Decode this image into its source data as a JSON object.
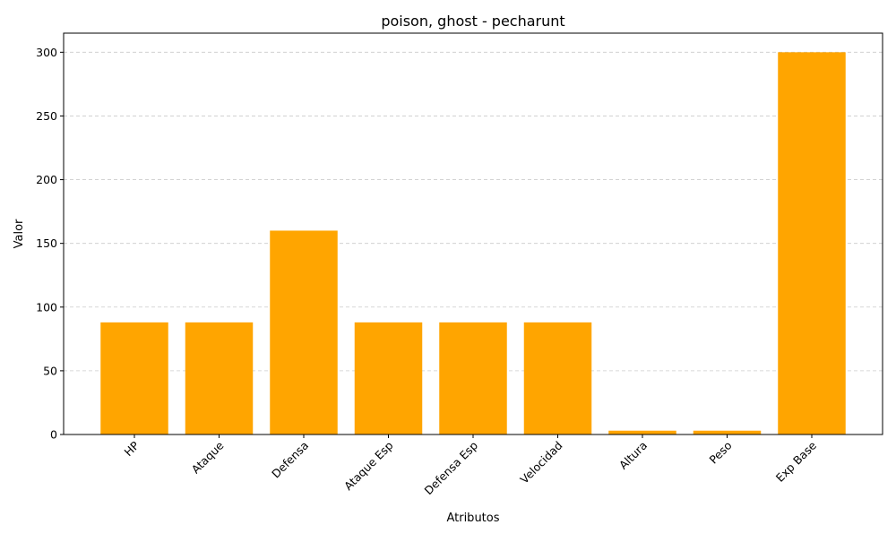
{
  "chart_data": {
    "type": "bar",
    "title": "poison, ghost - pecharunt",
    "xlabel": "Atributos",
    "ylabel": "Valor",
    "categories": [
      "HP",
      "Ataque",
      "Defensa",
      "Ataque Esp",
      "Defensa Esp",
      "Velocidad",
      "Altura",
      "Peso",
      "Exp Base"
    ],
    "values": [
      88,
      88,
      160,
      88,
      88,
      88,
      3,
      3,
      300
    ],
    "ylim": [
      0,
      315
    ],
    "yticks": [
      0,
      50,
      100,
      150,
      200,
      250,
      300
    ],
    "grid": "y-dashed",
    "bar_color": "#ffa500"
  }
}
